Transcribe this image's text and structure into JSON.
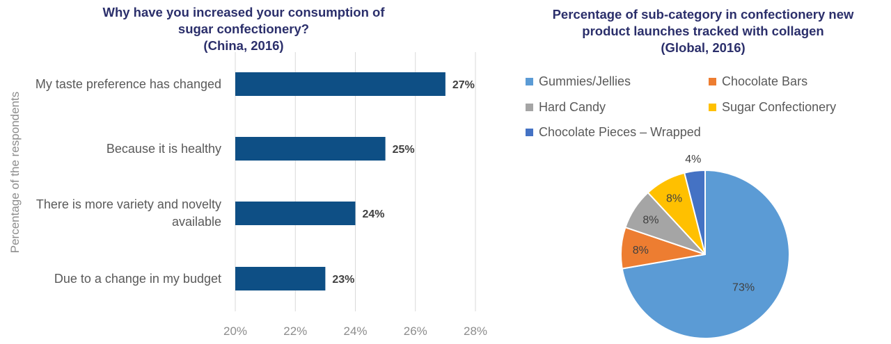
{
  "chart_data": [
    {
      "type": "bar",
      "orientation": "horizontal",
      "title": [
        "Why have you increased your consumption of",
        "sugar confectionery?",
        "(China, 2016)"
      ],
      "ylabel": "Percentage of the respondents",
      "categories": [
        [
          "My taste preference has changed"
        ],
        [
          "Because it is healthy"
        ],
        [
          "There is more variety and novelty",
          "available"
        ],
        [
          "Due to a change in my budget"
        ]
      ],
      "values": [
        27,
        25,
        24,
        23
      ],
      "value_labels": [
        "27%",
        "25%",
        "24%",
        "23%"
      ],
      "xlim": [
        20,
        28
      ],
      "xticks": [
        20,
        22,
        24,
        26,
        28
      ],
      "xtick_labels": [
        "20%",
        "22%",
        "24%",
        "26%",
        "28%"
      ],
      "grid": true,
      "color": "#0e4f85"
    },
    {
      "type": "pie",
      "title": [
        "Percentage of sub-category in confectionery new",
        "product launches tracked with collagen",
        "(Global, 2016)"
      ],
      "labels": [
        "Gummies/Jellies",
        "Chocolate Bars",
        "Hard Candy",
        "Sugar Confectionery",
        "Chocolate Pieces – Wrapped"
      ],
      "values": [
        73,
        8,
        8,
        8,
        4
      ],
      "value_labels": [
        "73%",
        "8%",
        "8%",
        "8%",
        "4%"
      ],
      "colors": [
        "#5b9bd5",
        "#ed7d31",
        "#a5a5a5",
        "#ffc000",
        "#4472c4"
      ],
      "legend_position": "top"
    }
  ]
}
